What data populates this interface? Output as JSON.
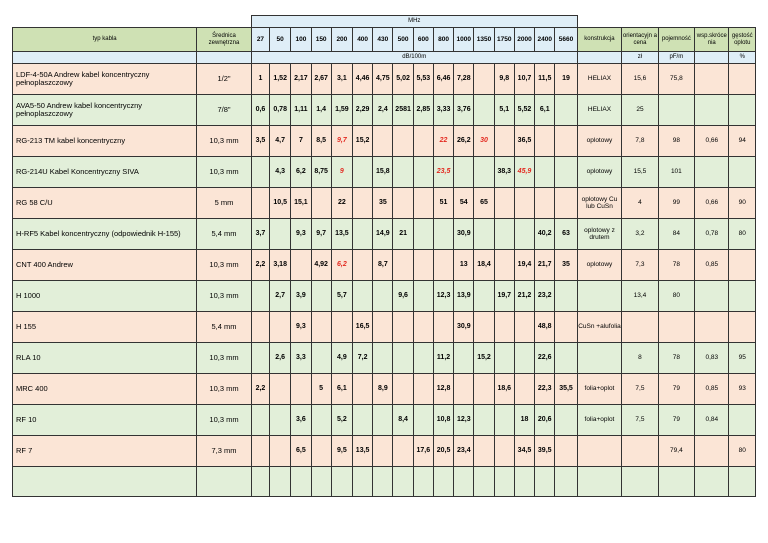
{
  "header": {
    "mhz": "MHz",
    "cable_type": "typ kabla",
    "diameter": "Średnica zewnętrzna",
    "frequencies": [
      "27",
      "50",
      "100",
      "150",
      "200",
      "400",
      "430",
      "500",
      "600",
      "800",
      "1000",
      "1350",
      "1750",
      "2000",
      "2400",
      "5660"
    ],
    "construction": "konstrukcja",
    "orientation": "orientacyjn a cena",
    "capacitance": "pojemność",
    "shortening": "wsp.skróce nia",
    "density": "gęstość oplotu",
    "units": {
      "attenuation": "dB/100m",
      "price": "zł",
      "capacitance": "pF/m",
      "density": "%"
    }
  },
  "rows": [
    {
      "name": "LDF-4-50A Andrew kabel koncentryczny pełnoplaszczowy",
      "diameter": "1/2\"",
      "values": [
        "1",
        "1,52",
        "2,17",
        "2,67",
        "3,1",
        "4,46",
        "4,75",
        "5,02",
        "5,53",
        "6,46",
        "7,28",
        "",
        "9,8",
        "10,7",
        "11,5",
        "19"
      ],
      "construction": "HELIAX",
      "price": "15,6",
      "capacitance": "75,8",
      "shortening": "",
      "density": ""
    },
    {
      "name": "AVA5-50 Andrew kabel koncentryczny pełnoplaszczowy",
      "diameter": "7/8\"",
      "values": [
        "0,6",
        "0,78",
        "1,11",
        "1,4",
        "1,59",
        "2,29",
        "2,4",
        "2581",
        "2,85",
        "3,33",
        "3,76",
        "",
        "5,1",
        "5,52",
        "6,1",
        ""
      ],
      "construction": "HELIAX",
      "price": "25",
      "capacitance": "",
      "shortening": "",
      "density": ""
    },
    {
      "name": "RG-213 TM kabel koncentryczny",
      "diameter": "10,3 mm",
      "values": [
        "3,5",
        "4,7",
        "7",
        "8,5",
        "9,7",
        "15,2",
        "",
        "",
        "",
        "22",
        "26,2",
        "30",
        "",
        "36,5",
        "",
        ""
      ],
      "construction": "oplotowy",
      "price": "7,8",
      "capacitance": "98",
      "shortening": "0,66",
      "density": "94"
    },
    {
      "name": "RG-214U Kabel Koncentryczny SIVA",
      "diameter": "10,3 mm",
      "values": [
        "",
        "4,3",
        "6,2",
        "8,75",
        "9",
        "",
        "15,8",
        "",
        "",
        "23,5",
        "",
        "",
        "38,3",
        "45,9",
        "",
        ""
      ],
      "construction": "oplotowy",
      "price": "15,5",
      "capacitance": "101",
      "shortening": "",
      "density": ""
    },
    {
      "name": "RG 58 C/U",
      "diameter": "5 mm",
      "values": [
        "",
        "10,5",
        "15,1",
        "",
        "22",
        "",
        "35",
        "",
        "",
        "51",
        "54",
        "65",
        "",
        "",
        "",
        ""
      ],
      "construction": "oplotowy Cu lub CuSn",
      "price": "4",
      "capacitance": "99",
      "shortening": "0,66",
      "density": "90"
    },
    {
      "name": "H-RF5 Kabel koncentryczny (odpowiednik H-155)",
      "diameter": "5,4 mm",
      "values": [
        "3,7",
        "",
        "9,3",
        "9,7",
        "13,5",
        "",
        "14,9",
        "21",
        "",
        "",
        "30,9",
        "",
        "",
        "",
        "40,2",
        "63"
      ],
      "construction": "oplotowy z drutem",
      "price": "3,2",
      "capacitance": "84",
      "shortening": "0,78",
      "density": "80"
    },
    {
      "name": "CNT 400 Andrew",
      "diameter": "10,3 mm",
      "values": [
        "2,2",
        "3,18",
        "",
        "4,92",
        "6,2",
        "",
        "8,7",
        "",
        "",
        "",
        "13",
        "18,4",
        "",
        "19,4",
        "21,7",
        "35"
      ],
      "construction": "oplotowy",
      "price": "7,3",
      "capacitance": "78",
      "shortening": "0,85",
      "density": ""
    },
    {
      "name": "H 1000",
      "diameter": "10,3 mm",
      "values": [
        "",
        "2,7",
        "3,9",
        "",
        "5,7",
        "",
        "",
        "9,6",
        "",
        "12,3",
        "13,9",
        "",
        "19,7",
        "21,2",
        "23,2",
        ""
      ],
      "construction": "",
      "price": "13,4",
      "capacitance": "80",
      "shortening": "",
      "density": ""
    },
    {
      "name": "H 155",
      "diameter": "5,4 mm",
      "values": [
        "",
        "",
        "9,3",
        "",
        "",
        "16,5",
        "",
        "",
        "",
        "",
        "30,9",
        "",
        "",
        "",
        "48,8",
        ""
      ],
      "construction": "CuSn +alufolia",
      "price": "",
      "capacitance": "",
      "shortening": "",
      "density": ""
    },
    {
      "name": "RLA 10",
      "diameter": "10,3 mm",
      "values": [
        "",
        "2,6",
        "3,3",
        "",
        "4,9",
        "7,2",
        "",
        "",
        "",
        "11,2",
        "",
        "15,2",
        "",
        "",
        "22,6",
        ""
      ],
      "construction": "",
      "price": "8",
      "capacitance": "78",
      "shortening": "0,83",
      "density": "95"
    },
    {
      "name": "MRC 400",
      "diameter": "10,3 mm",
      "values": [
        "2,2",
        "",
        "",
        "5",
        "6,1",
        "",
        "8,9",
        "",
        "",
        "12,8",
        "",
        "",
        "18,6",
        "",
        "22,3",
        "35,5"
      ],
      "construction": "folia+oplot",
      "price": "7,5",
      "capacitance": "79",
      "shortening": "0,85",
      "density": "93"
    },
    {
      "name": "RF 10",
      "diameter": "10,3 mm",
      "values": [
        "",
        "",
        "3,6",
        "",
        "5,2",
        "",
        "",
        "8,4",
        "",
        "10,8",
        "12,3",
        "",
        "",
        "18",
        "20,6",
        ""
      ],
      "construction": "folia+oplot",
      "price": "7,5",
      "capacitance": "79",
      "shortening": "0,84",
      "density": ""
    },
    {
      "name": "RF 7",
      "diameter": "7,3 mm",
      "values": [
        "",
        "",
        "6,5",
        "",
        "9,5",
        "13,5",
        "",
        "",
        "17,6",
        "20,5",
        "23,4",
        "",
        "",
        "34,5",
        "39,5",
        ""
      ],
      "construction": "",
      "price": "",
      "capacitance": "79,4",
      "shortening": "",
      "density": "80"
    },
    {
      "name": "",
      "diameter": "",
      "values": [
        "",
        "",
        "",
        "",
        "",
        "",
        "",
        "",
        "",
        "",
        "",
        "",
        "",
        "",
        "",
        ""
      ],
      "construction": "",
      "price": "",
      "capacitance": "",
      "shortening": "",
      "density": ""
    }
  ],
  "highlighted": [
    {
      "row": 2,
      "col": 4
    },
    {
      "row": 2,
      "col": 9
    },
    {
      "row": 2,
      "col": 11
    },
    {
      "row": 3,
      "col": 4
    },
    {
      "row": 3,
      "col": 9
    },
    {
      "row": 3,
      "col": 13
    },
    {
      "row": 6,
      "col": 4
    }
  ],
  "colors": {
    "pink_row": "#fbe5d6",
    "green_row": "#e2efd9",
    "header_blue": "#dfeef7",
    "header_green": "#cfe1b4",
    "highlight": "#e3281f"
  }
}
